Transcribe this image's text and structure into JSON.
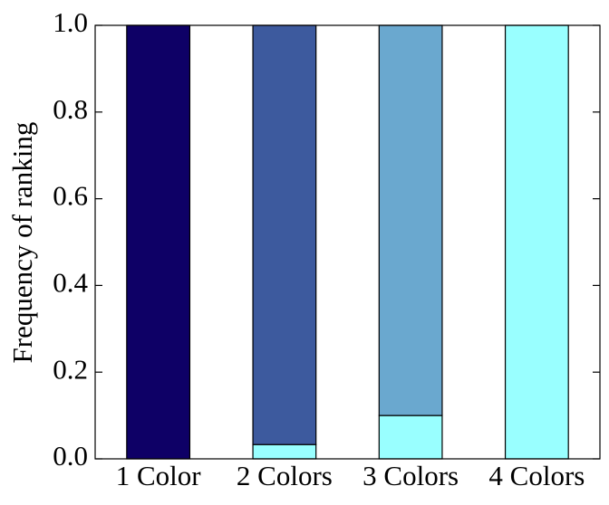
{
  "chart_data": {
    "type": "stacked-bar",
    "y_label": "Frequency of ranking",
    "categories": [
      "1 Color",
      "2 Colors",
      "3 Colors",
      "4 Colors"
    ],
    "series": [
      {
        "color": "#99ffff",
        "values": [
          0,
          0.033,
          0.1,
          1.0
        ]
      },
      {
        "color": "#0e0066",
        "values": [
          1.0,
          0,
          0,
          0
        ]
      },
      {
        "color": "#3d5a9e",
        "values": [
          0,
          0.967,
          0,
          0
        ]
      },
      {
        "color": "#6aa8cf",
        "values": [
          0,
          0,
          0.9,
          0
        ]
      }
    ],
    "ylim": [
      0,
      1.0
    ],
    "yticks": [
      {
        "value": 0,
        "label": "0.0"
      },
      0.2,
      0.4,
      0.6,
      0.8,
      {
        "value": 1.0,
        "label": "1.0"
      }
    ]
  }
}
